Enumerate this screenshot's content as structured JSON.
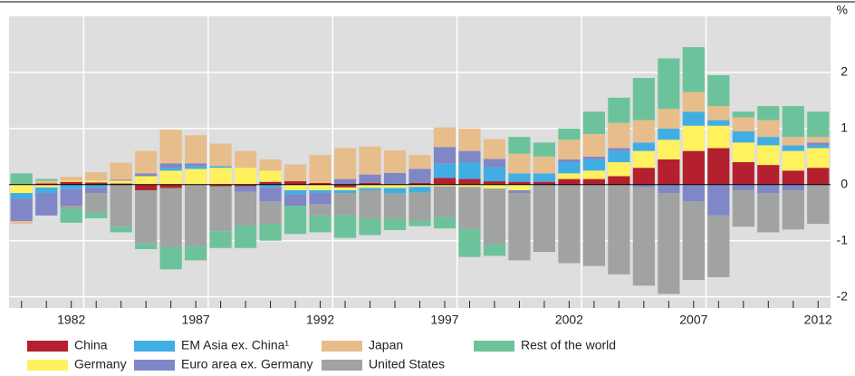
{
  "chart_data": {
    "type": "stacked-bar",
    "unit": "%",
    "categories": [
      null,
      null,
      "1982",
      null,
      null,
      null,
      null,
      "1987",
      null,
      null,
      null,
      null,
      "1992",
      null,
      null,
      null,
      null,
      "1997",
      null,
      null,
      null,
      null,
      "2002",
      null,
      null,
      null,
      null,
      "2007",
      null,
      null,
      null,
      null,
      "2012"
    ],
    "series": [
      {
        "name": "China",
        "color": "#b5202e",
        "values": [
          0,
          0.02,
          0.05,
          0.04,
          0.02,
          -0.1,
          -0.06,
          0,
          -0.03,
          -0.03,
          0.05,
          0.06,
          0.03,
          -0.05,
          0.03,
          0.01,
          0.03,
          0.12,
          0.1,
          0.06,
          0.05,
          0.05,
          0.1,
          0.1,
          0.15,
          0.3,
          0.45,
          0.6,
          0.65,
          0.4,
          0.35,
          0.25,
          0.3
        ]
      },
      {
        "name": "Germany",
        "color": "#fff25e",
        "values": [
          -0.15,
          -0.05,
          0.02,
          0.03,
          0.05,
          0.15,
          0.25,
          0.28,
          0.3,
          0.3,
          0.2,
          -0.1,
          -0.1,
          -0.05,
          -0.06,
          -0.06,
          -0.04,
          -0.03,
          -0.04,
          -0.07,
          -0.1,
          0,
          0.1,
          0.15,
          0.25,
          0.3,
          0.35,
          0.45,
          0.4,
          0.35,
          0.35,
          0.35,
          0.35
        ]
      },
      {
        "name": "EM Asia ex. China¹",
        "color": "#41aee3",
        "values": [
          -0.1,
          -0.1,
          -0.08,
          -0.05,
          0,
          0,
          0.05,
          0.05,
          0.03,
          0,
          -0.05,
          -0.08,
          -0.05,
          -0.05,
          -0.04,
          -0.1,
          -0.1,
          0.25,
          0.3,
          0.25,
          0.15,
          0.15,
          0.2,
          0.2,
          0.2,
          0.15,
          0.2,
          0.25,
          0.1,
          0.2,
          0.15,
          0.1,
          0.05
        ]
      },
      {
        "name": "Euro area ex. Germany",
        "color": "#7f87c6",
        "values": [
          -0.4,
          -0.4,
          -0.3,
          -0.1,
          0.02,
          0.05,
          0.08,
          0.05,
          0,
          -0.1,
          -0.25,
          -0.2,
          -0.2,
          0.1,
          0.15,
          0.2,
          0.25,
          0.3,
          0.2,
          0.15,
          -0.05,
          0,
          0.05,
          0.05,
          0.05,
          -0.05,
          -0.15,
          -0.3,
          -0.55,
          -0.1,
          -0.15,
          -0.1,
          0.05
        ]
      },
      {
        "name": "Japan",
        "color": "#e8bd8c",
        "values": [
          -0.05,
          0.05,
          0.07,
          0.15,
          0.3,
          0.4,
          0.6,
          0.5,
          0.4,
          0.3,
          0.2,
          0.3,
          0.5,
          0.55,
          0.5,
          0.4,
          0.25,
          0.35,
          0.4,
          0.35,
          0.35,
          0.3,
          0.35,
          0.4,
          0.45,
          0.4,
          0.35,
          0.35,
          0.25,
          0.25,
          0.3,
          0.15,
          0.1
        ]
      },
      {
        "name": "United States",
        "color": "#a0a3a1",
        "values": [
          0,
          0,
          -0.05,
          -0.35,
          -0.75,
          -0.95,
          -1.05,
          -1.1,
          -0.8,
          -0.6,
          -0.4,
          0,
          -0.2,
          -0.4,
          -0.5,
          -0.45,
          -0.5,
          -0.55,
          -0.75,
          -1.0,
          -1.2,
          -1.2,
          -1.4,
          -1.45,
          -1.6,
          -1.75,
          -1.8,
          -1.4,
          -1.1,
          -0.65,
          -0.7,
          -0.7,
          -0.7
        ]
      },
      {
        "name": "Rest of the world",
        "color": "#6cc39b",
        "values": [
          0.2,
          0.03,
          -0.25,
          -0.1,
          -0.1,
          -0.1,
          -0.4,
          -0.25,
          -0.3,
          -0.4,
          -0.3,
          -0.5,
          -0.3,
          -0.4,
          -0.3,
          -0.2,
          -0.1,
          -0.2,
          -0.5,
          -0.2,
          0.3,
          0.25,
          0.2,
          0.4,
          0.45,
          0.75,
          0.9,
          0.8,
          0.55,
          0.1,
          0.25,
          0.55,
          0.45
        ]
      }
    ],
    "ylim": [
      -2.2,
      3
    ],
    "yticks": [
      -2,
      -1,
      0,
      1,
      2
    ],
    "grid": true
  }
}
